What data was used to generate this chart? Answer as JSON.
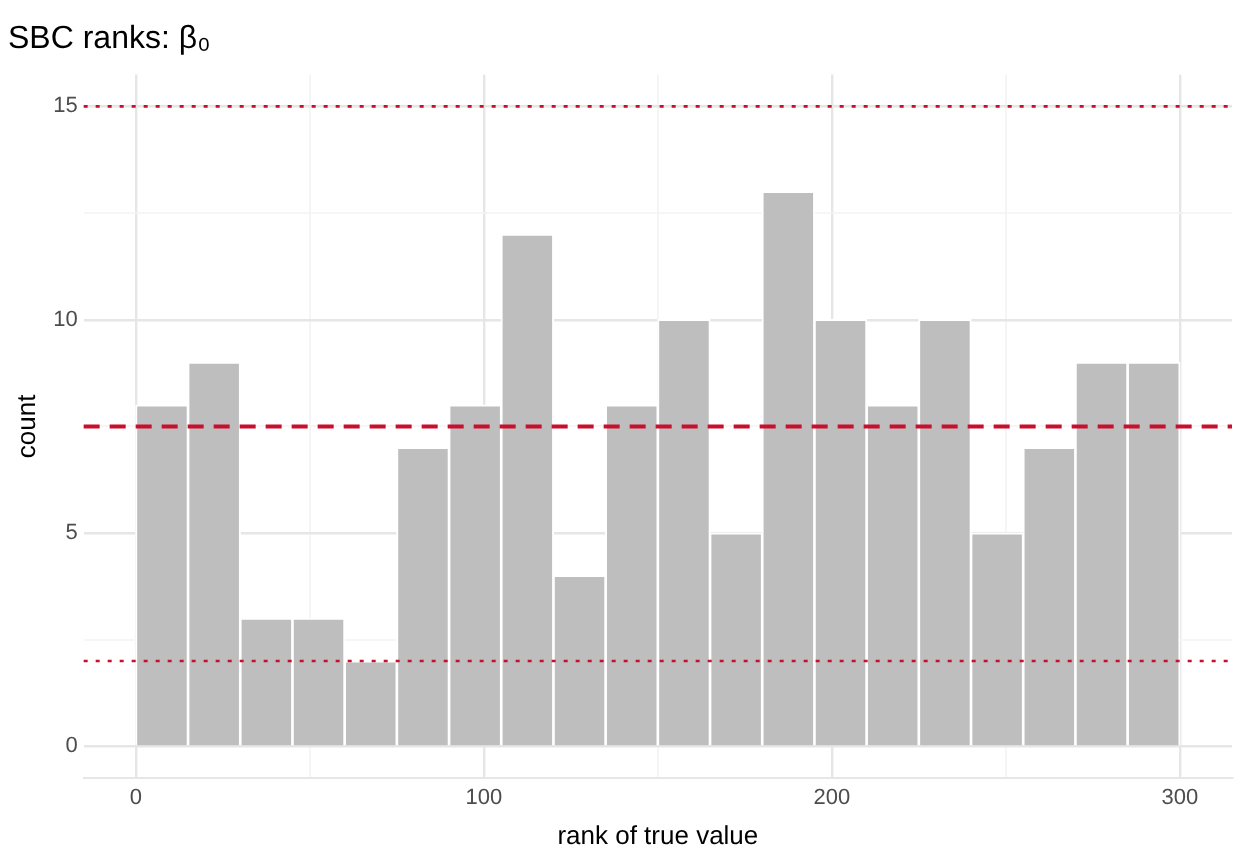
{
  "chart_data": {
    "type": "histogram",
    "title": "SBC ranks: β₀",
    "xlabel": "rank of true value",
    "ylabel": "count",
    "bins": [
      0,
      15,
      30,
      45,
      60,
      75,
      90,
      105,
      120,
      135,
      150,
      165,
      180,
      195,
      210,
      225,
      240,
      255,
      270,
      285,
      300
    ],
    "values": [
      8,
      9,
      3,
      3,
      2,
      7,
      8,
      12,
      4,
      8,
      10,
      5,
      13,
      10,
      8,
      10,
      5,
      7,
      9,
      9
    ],
    "color": "#bebebe",
    "xlim": [
      -15,
      315
    ],
    "xticks": [
      0,
      {
        "value": 50,
        "label": null
      },
      100,
      {
        "value": 150,
        "label": null
      },
      200,
      {
        "value": 250,
        "label": null
      },
      300
    ],
    "ylim": [
      -0.75,
      15.75
    ],
    "yticks": [
      0,
      {
        "value": 2.5,
        "label": null
      },
      5,
      {
        "value": 7.5,
        "label": null
      },
      10,
      {
        "value": 12.5,
        "label": null
      },
      15
    ],
    "grid": true,
    "legend": false,
    "ref_lines": [
      {
        "axis": "y",
        "value": 15,
        "color": "#c8102e",
        "line_style": "dotted"
      },
      {
        "axis": "y",
        "value": 7.5,
        "color": "#c8102e",
        "line_style": "dashed"
      },
      {
        "axis": "y",
        "value": 2,
        "color": "#c8102e",
        "line_style": "dotted"
      }
    ]
  }
}
